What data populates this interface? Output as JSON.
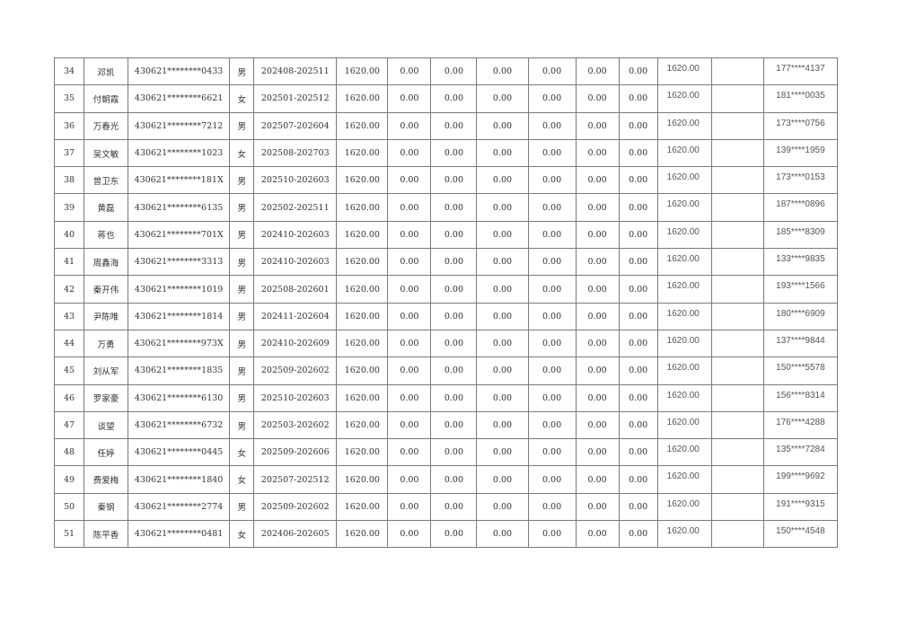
{
  "rows": [
    [
      "34",
      "邓凯",
      "430621********0433",
      "男",
      "202408-202511",
      "1620.00",
      "0.00",
      "0.00",
      "0.00",
      "0.00",
      "0.00",
      "0.00",
      "1620.00",
      "",
      "177****4137"
    ],
    [
      "35",
      "付朝霞",
      "430621********6621",
      "女",
      "202501-202512",
      "1620.00",
      "0.00",
      "0.00",
      "0.00",
      "0.00",
      "0.00",
      "0.00",
      "1620.00",
      "",
      "181****0035"
    ],
    [
      "36",
      "万春光",
      "430621********7212",
      "男",
      "202507-202604",
      "1620.00",
      "0.00",
      "0.00",
      "0.00",
      "0.00",
      "0.00",
      "0.00",
      "1620.00",
      "",
      "173****0756"
    ],
    [
      "37",
      "吴文敏",
      "430621********1023",
      "女",
      "202508-202703",
      "1620.00",
      "0.00",
      "0.00",
      "0.00",
      "0.00",
      "0.00",
      "0.00",
      "1620.00",
      "",
      "139****1959"
    ],
    [
      "38",
      "曾卫东",
      "430621********181X",
      "男",
      "202510-202603",
      "1620.00",
      "0.00",
      "0.00",
      "0.00",
      "0.00",
      "0.00",
      "0.00",
      "1620.00",
      "",
      "173****0153"
    ],
    [
      "39",
      "黄磊",
      "430621********6135",
      "男",
      "202502-202511",
      "1620.00",
      "0.00",
      "0.00",
      "0.00",
      "0.00",
      "0.00",
      "0.00",
      "1620.00",
      "",
      "187****0896"
    ],
    [
      "40",
      "蒋也",
      "430621********701X",
      "男",
      "202410-202603",
      "1620.00",
      "0.00",
      "0.00",
      "0.00",
      "0.00",
      "0.00",
      "0.00",
      "1620.00",
      "",
      "185****8309"
    ],
    [
      "41",
      "周鑫海",
      "430621********3313",
      "男",
      "202410-202603",
      "1620.00",
      "0.00",
      "0.00",
      "0.00",
      "0.00",
      "0.00",
      "0.00",
      "1620.00",
      "",
      "133****9835"
    ],
    [
      "42",
      "秦开伟",
      "430621********1019",
      "男",
      "202508-202601",
      "1620.00",
      "0.00",
      "0.00",
      "0.00",
      "0.00",
      "0.00",
      "0.00",
      "1620.00",
      "",
      "193****1566"
    ],
    [
      "43",
      "尹陈唯",
      "430621********1814",
      "男",
      "202411-202604",
      "1620.00",
      "0.00",
      "0.00",
      "0.00",
      "0.00",
      "0.00",
      "0.00",
      "1620.00",
      "",
      "180****6909"
    ],
    [
      "44",
      "万勇",
      "430621********973X",
      "男",
      "202410-202609",
      "1620.00",
      "0.00",
      "0.00",
      "0.00",
      "0.00",
      "0.00",
      "0.00",
      "1620.00",
      "",
      "137****9844"
    ],
    [
      "45",
      "刘从军",
      "430621********1835",
      "男",
      "202509-202602",
      "1620.00",
      "0.00",
      "0.00",
      "0.00",
      "0.00",
      "0.00",
      "0.00",
      "1620.00",
      "",
      "150****5578"
    ],
    [
      "46",
      "罗家豪",
      "430621********6130",
      "男",
      "202510-202603",
      "1620.00",
      "0.00",
      "0.00",
      "0.00",
      "0.00",
      "0.00",
      "0.00",
      "1620.00",
      "",
      "156****8314"
    ],
    [
      "47",
      "谈望",
      "430621********6732",
      "男",
      "202503-202602",
      "1620.00",
      "0.00",
      "0.00",
      "0.00",
      "0.00",
      "0.00",
      "0.00",
      "1620.00",
      "",
      "176****4288"
    ],
    [
      "48",
      "任婷",
      "430621********0445",
      "女",
      "202509-202606",
      "1620.00",
      "0.00",
      "0.00",
      "0.00",
      "0.00",
      "0.00",
      "0.00",
      "1620.00",
      "",
      "135****7284"
    ],
    [
      "49",
      "费爱梅",
      "430621********1840",
      "女",
      "202507-202512",
      "1620.00",
      "0.00",
      "0.00",
      "0.00",
      "0.00",
      "0.00",
      "0.00",
      "1620.00",
      "",
      "199****9692"
    ],
    [
      "50",
      "秦钢",
      "430621********2774",
      "男",
      "202509-202602",
      "1620.00",
      "0.00",
      "0.00",
      "0.00",
      "0.00",
      "0.00",
      "0.00",
      "1620.00",
      "",
      "191****9315"
    ],
    [
      "51",
      "陈平香",
      "430621********0481",
      "女",
      "202406-202605",
      "1620.00",
      "0.00",
      "0.00",
      "0.00",
      "0.00",
      "0.00",
      "0.00",
      "1620.00",
      "",
      "150****4548"
    ]
  ]
}
